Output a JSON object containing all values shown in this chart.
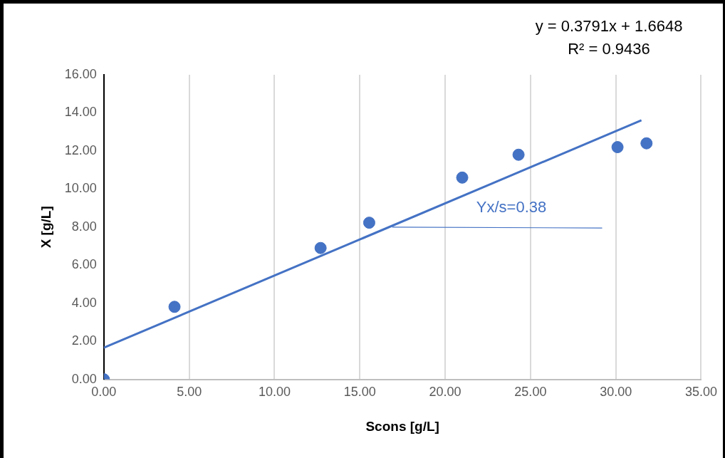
{
  "chart_data": {
    "type": "scatter",
    "xlabel": "Scons [g/L]",
    "ylabel": "X [g/L]",
    "x": [
      0,
      4.14,
      12.7,
      15.55,
      21.0,
      24.3,
      30.1,
      31.8
    ],
    "series": [
      {
        "color": "#4472c4",
        "marker": "circle",
        "values": [
          0,
          3.81,
          6.9,
          8.23,
          10.6,
          11.8,
          12.2,
          12.4
        ]
      },
      {
        "type": "line",
        "color": "#4472c4",
        "marker": "none",
        "x": [
          0,
          31.5
        ],
        "values": [
          1.66,
          13.61
        ]
      },
      {
        "type": "line",
        "color": "#4472c4",
        "marker": "none",
        "x": [
          16.9,
          29.2
        ],
        "values": [
          8.0,
          7.95
        ]
      }
    ],
    "xlim": [
      0,
      35
    ],
    "xticks": [
      {
        "value": 0,
        "label": "0.00"
      },
      {
        "value": 5,
        "label": "5.00"
      },
      {
        "value": 10,
        "label": "10.00"
      },
      {
        "value": 15,
        "label": "15.00"
      },
      {
        "value": 20,
        "label": "20.00"
      },
      {
        "value": 25,
        "label": "25.00"
      },
      {
        "value": 30,
        "label": "30.00"
      },
      {
        "value": 35,
        "label": "35.00"
      }
    ],
    "ylim": [
      0,
      16
    ],
    "yticks": [
      {
        "value": 0,
        "label": "0.00"
      },
      {
        "value": 2,
        "label": "2.00"
      },
      {
        "value": 4,
        "label": "4.00"
      },
      {
        "value": 6,
        "label": "6.00"
      },
      {
        "value": 8,
        "label": "8.00"
      },
      {
        "value": 10,
        "label": "10.00"
      },
      {
        "value": 12,
        "label": "12.00"
      },
      {
        "value": 14,
        "label": "14.00"
      },
      {
        "value": 16,
        "label": "16.00"
      }
    ],
    "grid": "x",
    "legend": false,
    "annotations": [
      "y = 0.3791x + 1.6648",
      "R² = 0.9436",
      "Yx/s=0.38"
    ]
  }
}
